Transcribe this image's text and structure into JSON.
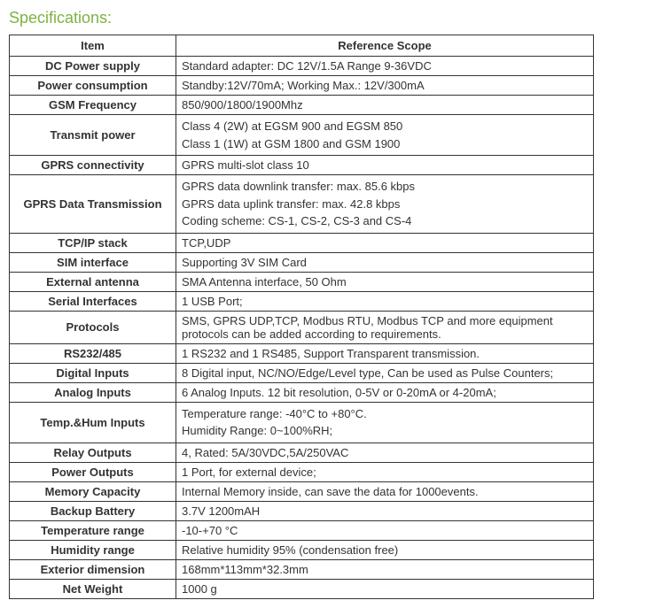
{
  "title": "Specifications:",
  "headers": {
    "item": "Item",
    "scope": "Reference Scope"
  },
  "rows": [
    {
      "item": "DC Power supply",
      "scope": "Standard adapter: DC 12V/1.5A  Range 9-36VDC"
    },
    {
      "item": "Power consumption",
      "scope": "Standby:12V/70mA;  Working Max.: 12V/300mA"
    },
    {
      "item": "GSM Frequency",
      "scope": "850/900/1800/1900Mhz"
    },
    {
      "item": "Transmit power",
      "scope": "Class 4 (2W) at EGSM 900 and EGSM 850\nClass 1 (1W) at GSM 1800 and GSM 1900"
    },
    {
      "item": "GPRS connectivity",
      "scope": "GPRS multi-slot class 10"
    },
    {
      "item": "GPRS Data Transmission",
      "scope": "GPRS data downlink transfer: max. 85.6 kbps\nGPRS data uplink transfer: max. 42.8 kbps\nCoding scheme: CS-1, CS-2, CS-3 and CS-4"
    },
    {
      "item": "TCP/IP stack",
      "scope": "TCP,UDP"
    },
    {
      "item": "SIM interface",
      "scope": "Supporting 3V SIM Card"
    },
    {
      "item": "External antenna",
      "scope": "SMA Antenna interface, 50 Ohm"
    },
    {
      "item": "Serial Interfaces",
      "scope": "1 USB Port;"
    },
    {
      "item": "Protocols",
      "scope": "SMS, GPRS UDP,TCP, Modbus RTU, Modbus TCP and more equipment protocols can be added according to requirements."
    },
    {
      "item": "RS232/485",
      "scope": "1 RS232 and 1 RS485, Support Transparent transmission."
    },
    {
      "item": "Digital Inputs",
      "scope": "8 Digital input, NC/NO/Edge/Level type, Can be used as Pulse Counters;"
    },
    {
      "item": "Analog Inputs",
      "scope": "6 Analog Inputs. 12 bit resolution, 0-5V or 0-20mA or 4-20mA;"
    },
    {
      "item": "Temp.&Hum Inputs",
      "scope": "Temperature range: -40°C to +80°C.\nHumidity Range: 0~100%RH;"
    },
    {
      "item": "Relay Outputs",
      "scope": "4, Rated: 5A/30VDC,5A/250VAC"
    },
    {
      "item": "Power Outputs",
      "scope": "1 Port, for external device;"
    },
    {
      "item": "Memory Capacity",
      "scope": "Internal Memory inside, can save the data for 1000events."
    },
    {
      "item": "Backup Battery",
      "scope": "3.7V 1200mAH"
    },
    {
      "item": "Temperature range",
      "scope": "-10-+70 °C"
    },
    {
      "item": "Humidity range",
      "scope": "Relative humidity 95% (condensation free)"
    },
    {
      "item": "Exterior dimension",
      "scope": "168mm*113mm*32.3mm"
    },
    {
      "item": "Net Weight",
      "scope": "1000 g"
    }
  ]
}
